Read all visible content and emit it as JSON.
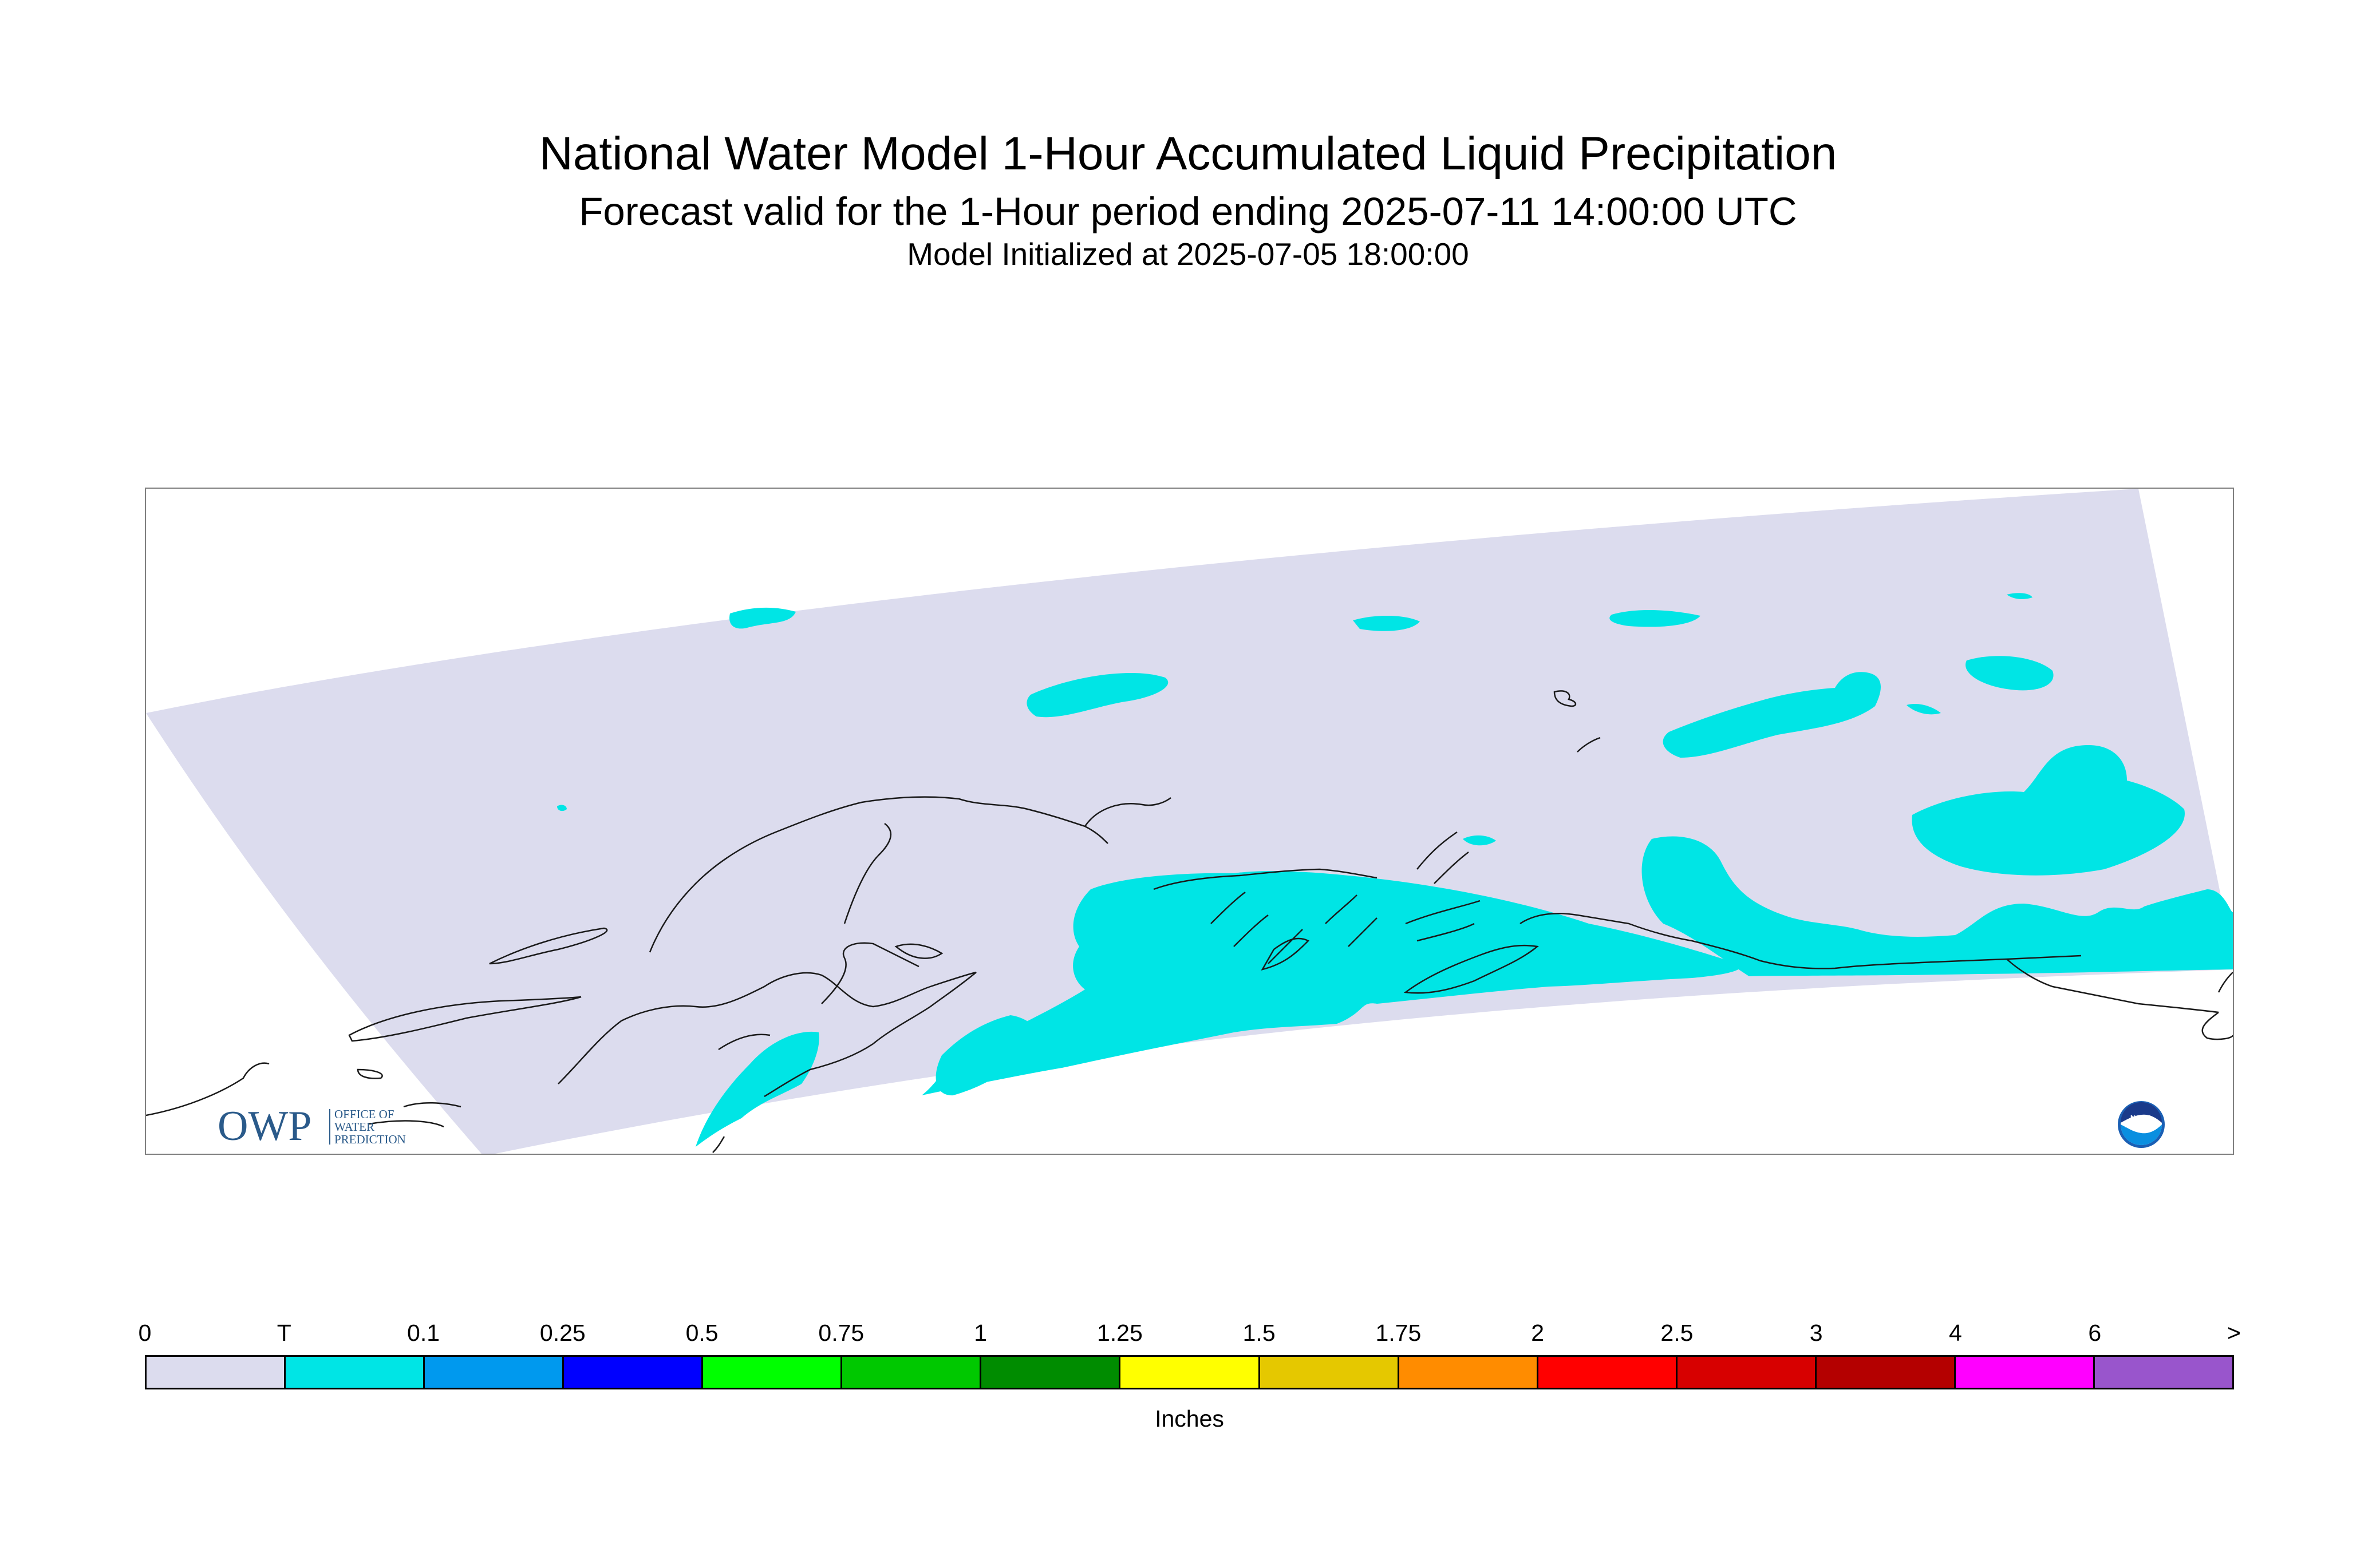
{
  "title": "National Water Model 1-Hour Accumulated Liquid Precipitation",
  "subtitle": "Forecast valid for the 1-Hour period ending 2025-07-11 14:00:00 UTC",
  "init_line": "Model Initialized at 2025-07-05 18:00:00",
  "map": {
    "domain_color": "#dcdcee",
    "precip_color": "#00e5e5",
    "coastline_color": "#1a1a1a"
  },
  "logos": {
    "owp_mark": "OWP",
    "owp_lines": [
      "OFFICE OF",
      "WATER",
      "PREDICTION"
    ],
    "noaa_mark": "NOAA"
  },
  "legend": {
    "unit": "Inches",
    "ticks": [
      "0",
      "T",
      "0.1",
      "0.25",
      "0.5",
      "0.75",
      "1",
      "1.25",
      "1.5",
      "1.75",
      "2",
      "2.5",
      "3",
      "4",
      "6",
      ">"
    ],
    "colors": [
      "#dcdcee",
      "#00e5e5",
      "#0099ee",
      "#0000ff",
      "#00ff00",
      "#00c800",
      "#008c00",
      "#ffff00",
      "#e5c800",
      "#ff8c00",
      "#ff0000",
      "#d70000",
      "#b40000",
      "#ff00ff",
      "#9955cc"
    ]
  }
}
